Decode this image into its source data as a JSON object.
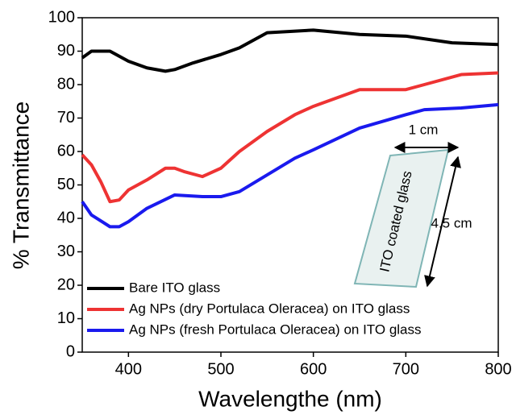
{
  "chart_data": {
    "type": "line",
    "x_label": "Wavelengthe (nm)",
    "y_label": "% Transmittance",
    "xlim": [
      350,
      800
    ],
    "xticks": [
      400,
      500,
      600,
      700,
      800
    ],
    "ylim": [
      0,
      100
    ],
    "yticks": [
      0,
      10,
      20,
      30,
      40,
      50,
      60,
      70,
      80,
      90,
      100
    ],
    "legend": "lower left",
    "series": [
      {
        "name": "Bare ITO glass",
        "color": "#000000",
        "x": [
          350,
          360,
          380,
          400,
          420,
          440,
          450,
          470,
          500,
          520,
          550,
          600,
          650,
          700,
          750,
          800
        ],
        "values": [
          88,
          90,
          90,
          87,
          85,
          84,
          84.5,
          86.5,
          89,
          91,
          95.5,
          96.3,
          95,
          94.5,
          92.5,
          92
        ]
      },
      {
        "name": "Ag NPs (dry Portulaca Oleracea) on ITO glass",
        "color": "#ee3333",
        "x": [
          350,
          360,
          370,
          380,
          390,
          400,
          420,
          440,
          450,
          460,
          480,
          500,
          520,
          550,
          580,
          600,
          650,
          700,
          720,
          760,
          800
        ],
        "values": [
          59,
          56,
          51,
          45,
          45.5,
          48.5,
          51.5,
          55,
          55,
          54,
          52.5,
          55,
          60,
          66,
          71,
          73.5,
          78.5,
          78.5,
          80,
          83,
          83.5
        ]
      },
      {
        "name": "Ag NPs (fresh Portulaca Oleracea) on ITO glass",
        "color": "#1a1aee",
        "x": [
          350,
          360,
          380,
          390,
          400,
          420,
          450,
          480,
          500,
          520,
          550,
          580,
          600,
          650,
          700,
          720,
          760,
          800
        ],
        "values": [
          45,
          41,
          37.5,
          37.5,
          39,
          43,
          47,
          46.5,
          46.5,
          48,
          53,
          58,
          60.5,
          67,
          71,
          72.5,
          73,
          74
        ]
      }
    ],
    "annotations": [
      "1 cm",
      "4.5 cm",
      "ITO coated glass"
    ]
  }
}
